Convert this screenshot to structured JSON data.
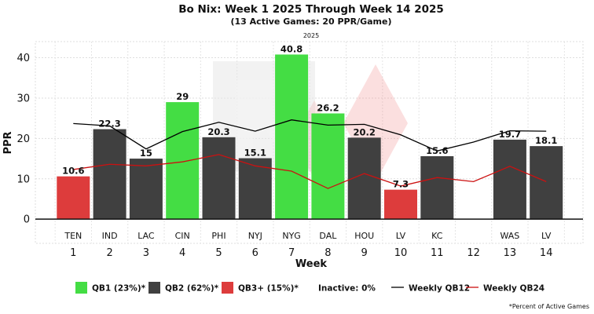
{
  "chart_data": {
    "type": "bar",
    "title": "Bo Nix: Week 1 2025 Through Week 14 2025",
    "subtitle": "(13 Active Games: 20 PPR/Game)",
    "season_label": "2025",
    "xlabel": "Week",
    "ylabel": "PPR",
    "ylim": [
      -6,
      44
    ],
    "yticks": [
      0,
      10,
      20,
      30,
      40
    ],
    "grid": true,
    "weeks": [
      1,
      2,
      3,
      4,
      5,
      6,
      7,
      8,
      9,
      10,
      11,
      12,
      13,
      14
    ],
    "opponents": [
      "TEN",
      "IND",
      "LAC",
      "CIN",
      "PHI",
      "NYJ",
      "NYG",
      "DAL",
      "HOU",
      "LV",
      "KC",
      "",
      "WAS",
      "LV"
    ],
    "values": [
      10.6,
      22.3,
      15,
      29,
      20.3,
      15.1,
      40.8,
      26.2,
      20.2,
      7.3,
      15.6,
      null,
      19.7,
      18.1
    ],
    "value_labels": [
      "10.6",
      "22.3",
      "15",
      "29",
      "20.3",
      "15.1",
      "40.8",
      "26.2",
      "20.2",
      "7.3",
      "15.6",
      "",
      "19.7",
      "18.1"
    ],
    "tiers": [
      "QB3+",
      "QB2",
      "QB2",
      "QB1",
      "QB2",
      "QB2",
      "QB1",
      "QB1",
      "QB2",
      "QB3+",
      "QB2",
      null,
      "QB2",
      "QB2"
    ],
    "tier_colors": {
      "QB1": "#44dd44",
      "QB2": "#404040",
      "QB3+": "#dd3c3c"
    },
    "weekly_qb12": [
      23.7,
      23.1,
      17.4,
      21.7,
      24.0,
      21.8,
      24.6,
      23.3,
      23.5,
      20.9,
      16.9,
      19.1,
      21.9,
      21.8
    ],
    "weekly_qb24": [
      12.3,
      13.6,
      13.2,
      14.2,
      16.0,
      13.2,
      11.9,
      7.6,
      11.3,
      8.2,
      10.3,
      9.3,
      13.1,
      9.3
    ],
    "line_colors": {
      "qb12": "#000000",
      "qb24": "#cc1111"
    },
    "legend": [
      {
        "key": "QB1",
        "label": "QB1 (23%)*",
        "kind": "box"
      },
      {
        "key": "QB2",
        "label": "QB2 (62%)*",
        "kind": "box"
      },
      {
        "key": "QB3+",
        "label": "QB3+ (15%)*",
        "kind": "box"
      },
      {
        "key": "inactive",
        "label": "Inactive: 0%",
        "kind": "text"
      },
      {
        "key": "qb12",
        "label": "Weekly QB12",
        "kind": "line"
      },
      {
        "key": "qb24",
        "label": "Weekly QB24",
        "kind": "line"
      }
    ],
    "legend_position": "bottom",
    "footnote": "*Percent of Active Games"
  }
}
